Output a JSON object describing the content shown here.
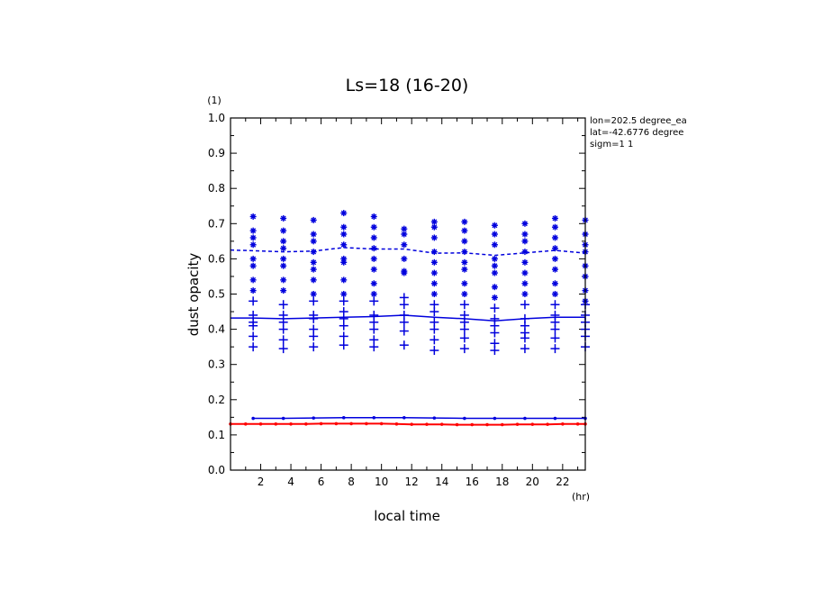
{
  "chart_data": {
    "type": "line",
    "title": "Ls=18 (16-20)",
    "xlabel": "local time",
    "ylabel": "dust opacity",
    "xunit": "(hr)",
    "yunit": "(1)",
    "xlim": [
      0,
      23.5
    ],
    "ylim": [
      0,
      1.0
    ],
    "xticks": [
      "2",
      "4",
      "6",
      "8",
      "10",
      "12",
      "14",
      "16",
      "18",
      "20",
      "22"
    ],
    "yticks": [
      "0.0",
      "0.1",
      "0.2",
      "0.3",
      "0.4",
      "0.5",
      "0.6",
      "0.7",
      "0.8",
      "0.9",
      "1.0"
    ],
    "annotations": [
      "lon=202.5 degree_ea",
      "lat=-42.6776 degree",
      "sigm=1 1"
    ],
    "series": [
      {
        "style": "dashed-with-asterisks",
        "color": "#0000dd",
        "x": [
          0,
          1.5,
          3.5,
          5.5,
          7.5,
          9.5,
          11.5,
          13.5,
          15.5,
          17.5,
          19.5,
          21.5,
          23.5
        ],
        "values": [
          0.625,
          0.623,
          0.62,
          0.622,
          0.632,
          0.628,
          0.628,
          0.616,
          0.617,
          0.61,
          0.617,
          0.624,
          0.616
        ],
        "scatter": [
          [
            1.5,
            0.72
          ],
          [
            1.5,
            0.68
          ],
          [
            1.5,
            0.66
          ],
          [
            1.5,
            0.64
          ],
          [
            1.5,
            0.6
          ],
          [
            1.5,
            0.58
          ],
          [
            1.5,
            0.54
          ],
          [
            1.5,
            0.51
          ],
          [
            3.5,
            0.715
          ],
          [
            3.5,
            0.68
          ],
          [
            3.5,
            0.65
          ],
          [
            3.5,
            0.63
          ],
          [
            3.5,
            0.6
          ],
          [
            3.5,
            0.58
          ],
          [
            3.5,
            0.54
          ],
          [
            3.5,
            0.51
          ],
          [
            5.5,
            0.71
          ],
          [
            5.5,
            0.67
          ],
          [
            5.5,
            0.65
          ],
          [
            5.5,
            0.62
          ],
          [
            5.5,
            0.59
          ],
          [
            5.5,
            0.57
          ],
          [
            5.5,
            0.54
          ],
          [
            5.5,
            0.5
          ],
          [
            7.5,
            0.73
          ],
          [
            7.5,
            0.69
          ],
          [
            7.5,
            0.67
          ],
          [
            7.5,
            0.64
          ],
          [
            7.5,
            0.6
          ],
          [
            7.5,
            0.59
          ],
          [
            7.5,
            0.54
          ],
          [
            7.5,
            0.5
          ],
          [
            9.5,
            0.72
          ],
          [
            9.5,
            0.69
          ],
          [
            9.5,
            0.66
          ],
          [
            9.5,
            0.63
          ],
          [
            9.5,
            0.6
          ],
          [
            9.5,
            0.57
          ],
          [
            9.5,
            0.53
          ],
          [
            9.5,
            0.5
          ],
          [
            11.5,
            0.685
          ],
          [
            11.5,
            0.67
          ],
          [
            11.5,
            0.64
          ],
          [
            11.5,
            0.6
          ],
          [
            11.5,
            0.565
          ],
          [
            11.5,
            0.56
          ],
          [
            13.5,
            0.705
          ],
          [
            13.5,
            0.69
          ],
          [
            13.5,
            0.66
          ],
          [
            13.5,
            0.62
          ],
          [
            13.5,
            0.59
          ],
          [
            13.5,
            0.56
          ],
          [
            13.5,
            0.53
          ],
          [
            13.5,
            0.5
          ],
          [
            15.5,
            0.705
          ],
          [
            15.5,
            0.68
          ],
          [
            15.5,
            0.65
          ],
          [
            15.5,
            0.62
          ],
          [
            15.5,
            0.59
          ],
          [
            15.5,
            0.57
          ],
          [
            15.5,
            0.53
          ],
          [
            15.5,
            0.5
          ],
          [
            17.5,
            0.695
          ],
          [
            17.5,
            0.67
          ],
          [
            17.5,
            0.64
          ],
          [
            17.5,
            0.6
          ],
          [
            17.5,
            0.58
          ],
          [
            17.5,
            0.56
          ],
          [
            17.5,
            0.52
          ],
          [
            17.5,
            0.49
          ],
          [
            19.5,
            0.7
          ],
          [
            19.5,
            0.67
          ],
          [
            19.5,
            0.65
          ],
          [
            19.5,
            0.62
          ],
          [
            19.5,
            0.59
          ],
          [
            19.5,
            0.56
          ],
          [
            19.5,
            0.53
          ],
          [
            19.5,
            0.5
          ],
          [
            21.5,
            0.715
          ],
          [
            21.5,
            0.69
          ],
          [
            21.5,
            0.66
          ],
          [
            21.5,
            0.63
          ],
          [
            21.5,
            0.6
          ],
          [
            21.5,
            0.57
          ],
          [
            21.5,
            0.53
          ],
          [
            21.5,
            0.5
          ],
          [
            23.5,
            0.71
          ],
          [
            23.5,
            0.67
          ],
          [
            23.5,
            0.64
          ],
          [
            23.5,
            0.62
          ],
          [
            23.5,
            0.58
          ],
          [
            23.5,
            0.55
          ],
          [
            23.5,
            0.51
          ],
          [
            23.5,
            0.48
          ]
        ]
      },
      {
        "style": "solid-with-pluses",
        "color": "#0000dd",
        "x": [
          0,
          1.5,
          3.5,
          5.5,
          7.5,
          9.5,
          11.5,
          13.5,
          15.5,
          17.5,
          19.5,
          21.5,
          23.5
        ],
        "values": [
          0.432,
          0.432,
          0.43,
          0.432,
          0.434,
          0.436,
          0.44,
          0.434,
          0.43,
          0.424,
          0.43,
          0.434,
          0.434
        ],
        "scatter": [
          [
            1.5,
            0.48
          ],
          [
            1.5,
            0.44
          ],
          [
            1.5,
            0.42
          ],
          [
            1.5,
            0.41
          ],
          [
            1.5,
            0.38
          ],
          [
            1.5,
            0.35
          ],
          [
            3.5,
            0.47
          ],
          [
            3.5,
            0.44
          ],
          [
            3.5,
            0.42
          ],
          [
            3.5,
            0.4
          ],
          [
            3.5,
            0.37
          ],
          [
            3.5,
            0.345
          ],
          [
            5.5,
            0.48
          ],
          [
            5.5,
            0.44
          ],
          [
            5.5,
            0.43
          ],
          [
            5.5,
            0.4
          ],
          [
            5.5,
            0.38
          ],
          [
            5.5,
            0.35
          ],
          [
            7.5,
            0.48
          ],
          [
            7.5,
            0.45
          ],
          [
            7.5,
            0.43
          ],
          [
            7.5,
            0.41
          ],
          [
            7.5,
            0.38
          ],
          [
            7.5,
            0.355
          ],
          [
            9.5,
            0.48
          ],
          [
            9.5,
            0.44
          ],
          [
            9.5,
            0.42
          ],
          [
            9.5,
            0.4
          ],
          [
            9.5,
            0.37
          ],
          [
            9.5,
            0.35
          ],
          [
            11.5,
            0.49
          ],
          [
            11.5,
            0.47
          ],
          [
            11.5,
            0.44
          ],
          [
            11.5,
            0.42
          ],
          [
            11.5,
            0.395
          ],
          [
            11.5,
            0.355
          ],
          [
            13.5,
            0.47
          ],
          [
            13.5,
            0.45
          ],
          [
            13.5,
            0.42
          ],
          [
            13.5,
            0.4
          ],
          [
            13.5,
            0.37
          ],
          [
            13.5,
            0.34
          ],
          [
            15.5,
            0.47
          ],
          [
            15.5,
            0.44
          ],
          [
            15.5,
            0.42
          ],
          [
            15.5,
            0.4
          ],
          [
            15.5,
            0.375
          ],
          [
            15.5,
            0.345
          ],
          [
            17.5,
            0.46
          ],
          [
            17.5,
            0.43
          ],
          [
            17.5,
            0.41
          ],
          [
            17.5,
            0.39
          ],
          [
            17.5,
            0.36
          ],
          [
            17.5,
            0.34
          ],
          [
            19.5,
            0.47
          ],
          [
            19.5,
            0.43
          ],
          [
            19.5,
            0.41
          ],
          [
            19.5,
            0.39
          ],
          [
            19.5,
            0.375
          ],
          [
            19.5,
            0.345
          ],
          [
            21.5,
            0.47
          ],
          [
            21.5,
            0.44
          ],
          [
            21.5,
            0.42
          ],
          [
            21.5,
            0.4
          ],
          [
            21.5,
            0.375
          ],
          [
            21.5,
            0.345
          ],
          [
            23.5,
            0.47
          ],
          [
            23.5,
            0.44
          ],
          [
            23.5,
            0.42
          ],
          [
            23.5,
            0.4
          ],
          [
            23.5,
            0.38
          ],
          [
            23.5,
            0.35
          ]
        ]
      },
      {
        "style": "solid-with-dots",
        "color": "#0000dd",
        "x": [
          1.5,
          3.5,
          5.5,
          7.5,
          9.5,
          11.5,
          13.5,
          15.5,
          17.5,
          19.5,
          21.5,
          23.5
        ],
        "values": [
          0.147,
          0.147,
          0.148,
          0.149,
          0.149,
          0.149,
          0.148,
          0.147,
          0.147,
          0.147,
          0.147,
          0.147
        ]
      },
      {
        "style": "solid-with-dots",
        "color": "#ff0000",
        "x": [
          0,
          1,
          2,
          3,
          4,
          5,
          6,
          7,
          8,
          9,
          10,
          11,
          12,
          13,
          14,
          15,
          16,
          17,
          18,
          19,
          20,
          21,
          22,
          23,
          23.5
        ],
        "values": [
          0.131,
          0.131,
          0.131,
          0.131,
          0.131,
          0.131,
          0.132,
          0.132,
          0.132,
          0.132,
          0.132,
          0.131,
          0.13,
          0.13,
          0.13,
          0.129,
          0.129,
          0.129,
          0.129,
          0.13,
          0.13,
          0.13,
          0.131,
          0.131,
          0.131
        ]
      }
    ]
  }
}
